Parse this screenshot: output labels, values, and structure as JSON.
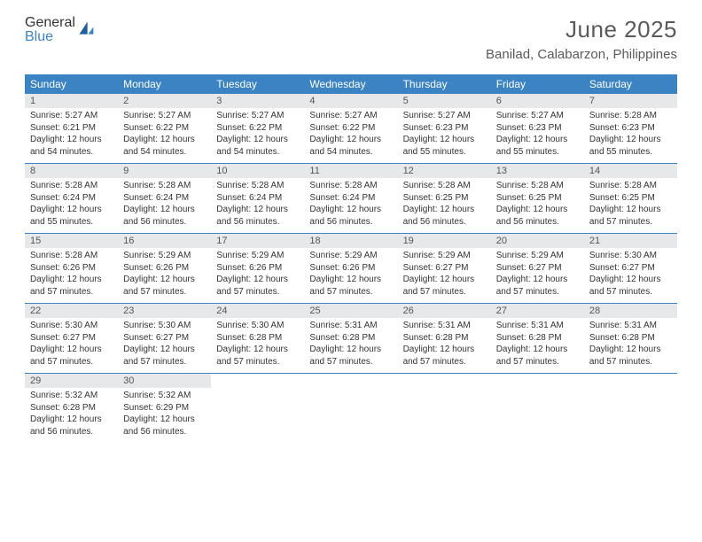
{
  "brand": {
    "word1": "General",
    "word2": "Blue"
  },
  "title": "June 2025",
  "location": "Banilad, Calabarzon, Philippines",
  "colors": {
    "accent": "#3b83c2",
    "dow_bg": "#3b83c2",
    "dow_text": "#ffffff",
    "daynum_bg": "#e7e8e9",
    "text_muted": "#5a5a5b",
    "text_body": "#333333",
    "border": "#3b83c2"
  },
  "dow": [
    "Sunday",
    "Monday",
    "Tuesday",
    "Wednesday",
    "Thursday",
    "Friday",
    "Saturday"
  ],
  "weeks": [
    [
      {
        "n": "1",
        "sr": "Sunrise: 5:27 AM",
        "ss": "Sunset: 6:21 PM",
        "d1": "Daylight: 12 hours",
        "d2": "and 54 minutes."
      },
      {
        "n": "2",
        "sr": "Sunrise: 5:27 AM",
        "ss": "Sunset: 6:22 PM",
        "d1": "Daylight: 12 hours",
        "d2": "and 54 minutes."
      },
      {
        "n": "3",
        "sr": "Sunrise: 5:27 AM",
        "ss": "Sunset: 6:22 PM",
        "d1": "Daylight: 12 hours",
        "d2": "and 54 minutes."
      },
      {
        "n": "4",
        "sr": "Sunrise: 5:27 AM",
        "ss": "Sunset: 6:22 PM",
        "d1": "Daylight: 12 hours",
        "d2": "and 54 minutes."
      },
      {
        "n": "5",
        "sr": "Sunrise: 5:27 AM",
        "ss": "Sunset: 6:23 PM",
        "d1": "Daylight: 12 hours",
        "d2": "and 55 minutes."
      },
      {
        "n": "6",
        "sr": "Sunrise: 5:27 AM",
        "ss": "Sunset: 6:23 PM",
        "d1": "Daylight: 12 hours",
        "d2": "and 55 minutes."
      },
      {
        "n": "7",
        "sr": "Sunrise: 5:28 AM",
        "ss": "Sunset: 6:23 PM",
        "d1": "Daylight: 12 hours",
        "d2": "and 55 minutes."
      }
    ],
    [
      {
        "n": "8",
        "sr": "Sunrise: 5:28 AM",
        "ss": "Sunset: 6:24 PM",
        "d1": "Daylight: 12 hours",
        "d2": "and 55 minutes."
      },
      {
        "n": "9",
        "sr": "Sunrise: 5:28 AM",
        "ss": "Sunset: 6:24 PM",
        "d1": "Daylight: 12 hours",
        "d2": "and 56 minutes."
      },
      {
        "n": "10",
        "sr": "Sunrise: 5:28 AM",
        "ss": "Sunset: 6:24 PM",
        "d1": "Daylight: 12 hours",
        "d2": "and 56 minutes."
      },
      {
        "n": "11",
        "sr": "Sunrise: 5:28 AM",
        "ss": "Sunset: 6:24 PM",
        "d1": "Daylight: 12 hours",
        "d2": "and 56 minutes."
      },
      {
        "n": "12",
        "sr": "Sunrise: 5:28 AM",
        "ss": "Sunset: 6:25 PM",
        "d1": "Daylight: 12 hours",
        "d2": "and 56 minutes."
      },
      {
        "n": "13",
        "sr": "Sunrise: 5:28 AM",
        "ss": "Sunset: 6:25 PM",
        "d1": "Daylight: 12 hours",
        "d2": "and 56 minutes."
      },
      {
        "n": "14",
        "sr": "Sunrise: 5:28 AM",
        "ss": "Sunset: 6:25 PM",
        "d1": "Daylight: 12 hours",
        "d2": "and 57 minutes."
      }
    ],
    [
      {
        "n": "15",
        "sr": "Sunrise: 5:28 AM",
        "ss": "Sunset: 6:26 PM",
        "d1": "Daylight: 12 hours",
        "d2": "and 57 minutes."
      },
      {
        "n": "16",
        "sr": "Sunrise: 5:29 AM",
        "ss": "Sunset: 6:26 PM",
        "d1": "Daylight: 12 hours",
        "d2": "and 57 minutes."
      },
      {
        "n": "17",
        "sr": "Sunrise: 5:29 AM",
        "ss": "Sunset: 6:26 PM",
        "d1": "Daylight: 12 hours",
        "d2": "and 57 minutes."
      },
      {
        "n": "18",
        "sr": "Sunrise: 5:29 AM",
        "ss": "Sunset: 6:26 PM",
        "d1": "Daylight: 12 hours",
        "d2": "and 57 minutes."
      },
      {
        "n": "19",
        "sr": "Sunrise: 5:29 AM",
        "ss": "Sunset: 6:27 PM",
        "d1": "Daylight: 12 hours",
        "d2": "and 57 minutes."
      },
      {
        "n": "20",
        "sr": "Sunrise: 5:29 AM",
        "ss": "Sunset: 6:27 PM",
        "d1": "Daylight: 12 hours",
        "d2": "and 57 minutes."
      },
      {
        "n": "21",
        "sr": "Sunrise: 5:30 AM",
        "ss": "Sunset: 6:27 PM",
        "d1": "Daylight: 12 hours",
        "d2": "and 57 minutes."
      }
    ],
    [
      {
        "n": "22",
        "sr": "Sunrise: 5:30 AM",
        "ss": "Sunset: 6:27 PM",
        "d1": "Daylight: 12 hours",
        "d2": "and 57 minutes."
      },
      {
        "n": "23",
        "sr": "Sunrise: 5:30 AM",
        "ss": "Sunset: 6:27 PM",
        "d1": "Daylight: 12 hours",
        "d2": "and 57 minutes."
      },
      {
        "n": "24",
        "sr": "Sunrise: 5:30 AM",
        "ss": "Sunset: 6:28 PM",
        "d1": "Daylight: 12 hours",
        "d2": "and 57 minutes."
      },
      {
        "n": "25",
        "sr": "Sunrise: 5:31 AM",
        "ss": "Sunset: 6:28 PM",
        "d1": "Daylight: 12 hours",
        "d2": "and 57 minutes."
      },
      {
        "n": "26",
        "sr": "Sunrise: 5:31 AM",
        "ss": "Sunset: 6:28 PM",
        "d1": "Daylight: 12 hours",
        "d2": "and 57 minutes."
      },
      {
        "n": "27",
        "sr": "Sunrise: 5:31 AM",
        "ss": "Sunset: 6:28 PM",
        "d1": "Daylight: 12 hours",
        "d2": "and 57 minutes."
      },
      {
        "n": "28",
        "sr": "Sunrise: 5:31 AM",
        "ss": "Sunset: 6:28 PM",
        "d1": "Daylight: 12 hours",
        "d2": "and 57 minutes."
      }
    ],
    [
      {
        "n": "29",
        "sr": "Sunrise: 5:32 AM",
        "ss": "Sunset: 6:28 PM",
        "d1": "Daylight: 12 hours",
        "d2": "and 56 minutes."
      },
      {
        "n": "30",
        "sr": "Sunrise: 5:32 AM",
        "ss": "Sunset: 6:29 PM",
        "d1": "Daylight: 12 hours",
        "d2": "and 56 minutes."
      },
      null,
      null,
      null,
      null,
      null
    ]
  ]
}
